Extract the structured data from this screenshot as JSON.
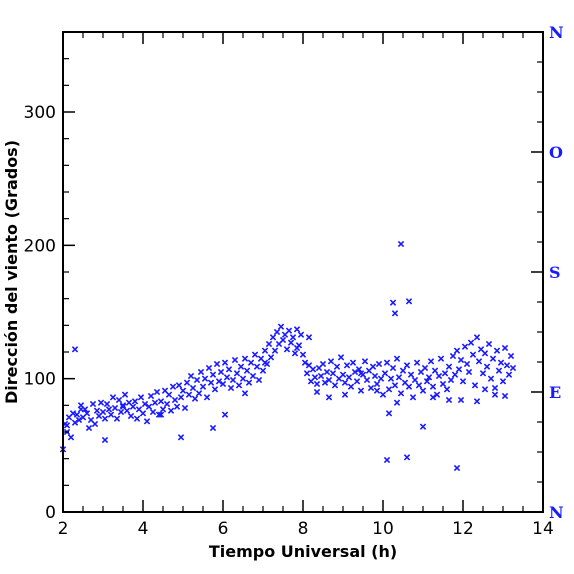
{
  "chart_data": {
    "type": "scatter",
    "title": "",
    "xlabel": "Tiempo Universal (h)",
    "ylabel": "Dirección del viento (Grados)",
    "xlim": [
      2,
      14
    ],
    "ylim": [
      0,
      360
    ],
    "x_ticks": [
      2,
      4,
      6,
      8,
      10,
      12,
      14
    ],
    "x_tick_labels": [
      "2",
      "4",
      "6",
      "8",
      "10",
      "12",
      "14"
    ],
    "y_ticks": [
      0,
      100,
      200,
      300
    ],
    "y_tick_labels": [
      "0",
      "100",
      "200",
      "300"
    ],
    "right_axis": {
      "ticks": [
        0,
        90,
        180,
        270,
        360
      ],
      "labels": [
        "N",
        "E",
        "S",
        "O",
        "N"
      ],
      "color": "#1a1aff"
    },
    "grid": false,
    "marker": "x",
    "point_color": "#1a1aff",
    "series": [
      {
        "x": [
          2.0,
          2.05,
          2.1,
          2.15,
          2.2,
          2.25,
          2.3,
          2.35,
          2.4,
          2.45,
          2.5,
          2.55,
          2.6,
          2.65,
          2.7,
          2.75,
          2.8,
          2.85,
          2.9,
          2.95,
          3.0,
          3.05,
          3.1,
          3.15,
          3.2,
          3.25,
          3.3,
          3.35,
          3.4,
          3.45,
          3.5,
          3.55,
          3.6,
          3.65,
          3.7,
          3.75,
          3.8,
          3.85,
          3.9,
          3.95,
          4.0,
          4.05,
          4.1,
          4.15,
          4.2,
          4.25,
          4.3,
          4.35,
          4.4,
          4.45,
          4.5,
          4.55,
          4.6,
          4.65,
          4.7,
          4.75,
          4.8,
          4.85,
          4.9,
          4.95,
          5.0,
          5.05,
          5.1,
          5.15,
          5.2,
          5.25,
          5.3,
          5.35,
          5.4,
          5.45,
          5.5,
          5.55,
          5.6,
          5.65,
          5.7,
          5.75,
          5.8,
          5.85,
          5.9,
          5.95,
          6.0,
          6.05,
          6.1,
          6.15,
          6.2,
          6.25,
          6.3,
          6.35,
          6.4,
          6.45,
          6.5,
          6.55,
          6.6,
          6.65,
          6.7,
          6.75,
          6.8,
          6.85,
          6.9,
          6.95,
          7.0,
          7.05,
          7.1,
          7.15,
          7.2,
          7.25,
          7.3,
          7.35,
          7.4,
          7.45,
          7.5,
          7.55,
          7.6,
          7.65,
          7.7,
          7.75,
          7.8,
          7.85,
          7.9,
          7.95,
          8.0,
          8.05,
          8.1,
          8.15,
          8.2,
          8.25,
          8.3,
          8.35,
          8.4,
          8.45,
          8.5,
          8.55,
          8.6,
          8.65,
          8.7,
          8.75,
          8.8,
          8.85,
          8.9,
          8.95,
          9.0,
          9.05,
          9.1,
          9.15,
          9.2,
          9.25,
          9.3,
          9.35,
          9.4,
          9.45,
          9.5,
          9.55,
          9.6,
          9.65,
          9.7,
          9.75,
          9.8,
          9.85,
          9.9,
          9.95,
          10.0,
          10.05,
          10.1,
          10.15,
          10.2,
          10.25,
          10.3,
          10.35,
          10.4,
          10.45,
          10.5,
          10.55,
          10.6,
          10.65,
          10.7,
          10.75,
          10.8,
          10.85,
          10.9,
          10.95,
          11.0,
          11.05,
          11.1,
          11.15,
          11.2,
          11.25,
          11.3,
          11.35,
          11.4,
          11.45,
          11.5,
          11.55,
          11.6,
          11.65,
          11.7,
          11.75,
          11.8,
          11.85,
          11.9,
          11.95,
          12.0,
          12.05,
          12.1,
          12.15,
          12.2,
          12.25,
          12.3,
          12.35,
          12.4,
          12.45,
          12.5,
          12.55,
          12.6,
          12.65,
          12.7,
          12.75,
          12.8,
          12.85,
          12.9,
          12.95,
          13.0,
          13.05,
          13.1,
          13.15,
          13.2,
          13.25,
          2.3,
          2.45,
          4.95,
          5.75,
          7.05,
          10.1,
          10.15,
          10.45,
          10.65,
          10.25,
          10.3,
          10.6,
          11.0,
          11.85,
          11.95,
          8.35,
          8.65,
          9.05,
          9.85,
          10.35,
          11.25,
          11.65,
          12.35,
          12.8,
          13.05,
          3.5,
          4.45,
          6.55,
          7.85,
          9.45,
          12.55,
          2.1,
          3.05,
          6.05,
          8.15
        ],
        "y": [
          47,
          66,
          60,
          71,
          56,
          74,
          67,
          73,
          69,
          80,
          71,
          77,
          74,
          63,
          69,
          81,
          66,
          76,
          72,
          82,
          75,
          70,
          81,
          77,
          73,
          86,
          78,
          70,
          84,
          75,
          79,
          88,
          76,
          82,
          72,
          79,
          83,
          70,
          77,
          86,
          74,
          81,
          68,
          79,
          87,
          75,
          82,
          90,
          73,
          83,
          77,
          91,
          81,
          88,
          76,
          94,
          84,
          79,
          95,
          86,
          91,
          78,
          97,
          88,
          102,
          93,
          85,
          99,
          89,
          105,
          94,
          100,
          86,
          108,
          97,
          103,
          92,
          111,
          98,
          105,
          96,
          112,
          101,
          107,
          93,
          99,
          114,
          104,
          95,
          109,
          100,
          115,
          106,
          97,
          112,
          102,
          118,
          109,
          99,
          115,
          106,
          121,
          111,
          126,
          116,
          131,
          121,
          135,
          126,
          139,
          129,
          133,
          122,
          136,
          127,
          131,
          119,
          137,
          125,
          133,
          118,
          112,
          104,
          110,
          98,
          107,
          101,
          96,
          108,
          102,
          111,
          97,
          105,
          99,
          113,
          104,
          95,
          109,
          100,
          116,
          103,
          97,
          110,
          101,
          94,
          112,
          105,
          98,
          107,
          91,
          103,
          113,
          99,
          106,
          93,
          109,
          102,
          96,
          111,
          100,
          88,
          104,
          112,
          92,
          100,
          108,
          95,
          115,
          101,
          89,
          106,
          97,
          110,
          94,
          103,
          86,
          99,
          112,
          95,
          105,
          91,
          108,
          98,
          101,
          113,
          94,
          106,
          88,
          102,
          115,
          96,
          104,
          92,
          109,
          99,
          117,
          103,
          121,
          107,
          114,
          98,
          124,
          111,
          105,
          127,
          118,
          95,
          131,
          113,
          122,
          104,
          119,
          109,
          126,
          100,
          115,
          93,
          121,
          106,
          112,
          98,
          123,
          110,
          103,
          117,
          108,
          122,
          77,
          56,
          63,
          112,
          39,
          74,
          201,
          158,
          157,
          149,
          41,
          64,
          33,
          84,
          90,
          86,
          88,
          91,
          82,
          86,
          84,
          83,
          88,
          87,
          80,
          73,
          89,
          123,
          104,
          92,
          65,
          54,
          73,
          131
        ]
      }
    ]
  }
}
